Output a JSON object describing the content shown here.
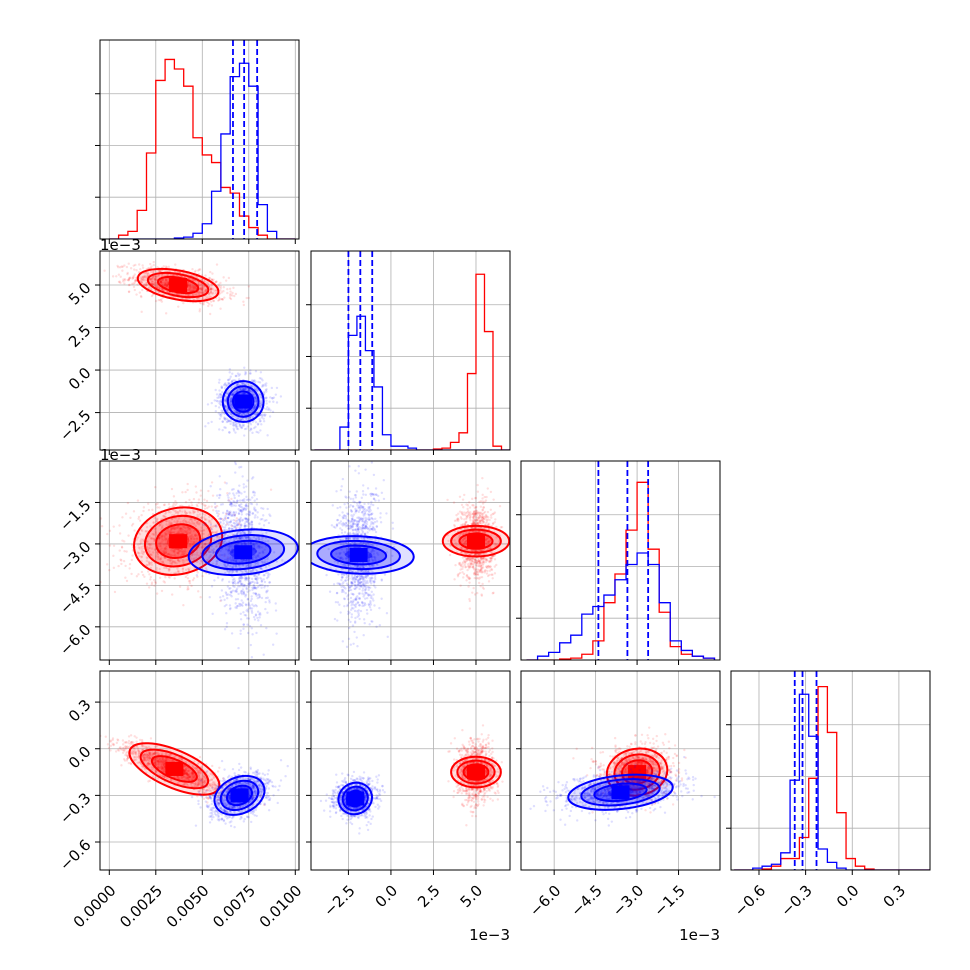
{
  "chart_data": {
    "type": "corner",
    "n_params": 4,
    "grid": true,
    "series": [
      {
        "color": "#ff0000"
      },
      {
        "color": "#0000ff"
      }
    ],
    "params": [
      {
        "range": [
          -0.0005,
          0.0102
        ],
        "ticks": [
          0.0,
          0.0025,
          0.005,
          0.0075,
          0.01
        ],
        "tick_labels": [
          "0.0000",
          "0.0025",
          "0.0050",
          "0.0075",
          "0.0100"
        ],
        "offset_text": ""
      },
      {
        "range": [
          -4.7,
          7.0
        ],
        "ticks": [
          -2.5,
          0.0,
          2.5,
          5.0
        ],
        "tick_labels": [
          "−2.5",
          "0.0",
          "2.5",
          "5.0"
        ],
        "offset_text": "1e−3"
      },
      {
        "range": [
          -7.2,
          0.0
        ],
        "ticks": [
          -6.0,
          -4.5,
          -3.0,
          -1.5
        ],
        "tick_labels": [
          "−6.0",
          "−4.5",
          "−3.0",
          "−1.5"
        ],
        "offset_text": "1e−3"
      },
      {
        "range": [
          -0.78,
          0.5
        ],
        "ticks": [
          -0.6,
          -0.3,
          0.0,
          0.3
        ],
        "tick_labels": [
          "−0.6",
          "−0.3",
          "0.0",
          "0.3"
        ],
        "offset_text": ""
      }
    ],
    "blob_centers": {
      "red": [
        0.0035,
        5.0,
        -2.9,
        -0.14
      ],
      "blue": [
        0.0072,
        -1.9,
        -3.2,
        -0.33
      ]
    },
    "histograms": [
      {
        "bin_edges": [
          0.0,
          0.0005,
          0.001,
          0.0015,
          0.002,
          0.0025,
          0.003,
          0.0035,
          0.004,
          0.0045,
          0.005,
          0.0055,
          0.006,
          0.0065,
          0.007,
          0.0075,
          0.008,
          0.0085,
          0.009,
          0.0095,
          0.01
        ],
        "red": [
          0.0,
          0.02,
          0.04,
          0.15,
          0.45,
          0.83,
          0.94,
          0.89,
          0.8,
          0.53,
          0.44,
          0.4,
          0.27,
          0.24,
          0.12,
          0.06,
          0.02,
          0.0,
          0.0,
          0.0
        ],
        "blue": [
          0.0,
          0.0,
          0.0,
          0.0,
          0.0,
          0.0,
          0.0,
          0.005,
          0.01,
          0.03,
          0.08,
          0.25,
          0.55,
          0.85,
          0.92,
          0.8,
          0.18,
          0.04,
          0.0,
          0.0
        ],
        "quantiles_blue": [
          0.00665,
          0.00725,
          0.00795
        ]
      },
      {
        "bin_edges": [
          -4.5,
          -4.0,
          -3.5,
          -3.0,
          -2.5,
          -2.0,
          -1.5,
          -1.0,
          -0.5,
          0.0,
          0.5,
          1.0,
          1.5,
          2.0,
          2.5,
          3.0,
          3.5,
          4.0,
          4.5,
          5.0,
          5.5,
          6.0,
          6.5,
          7.0
        ],
        "red": [
          0.0,
          0.0,
          0.0,
          0.0,
          0.0,
          0.0,
          0.0,
          0.0,
          0.0,
          0.0,
          0.0,
          0.0,
          0.0,
          0.0,
          0.005,
          0.01,
          0.04,
          0.09,
          0.4,
          0.92,
          0.62,
          0.02,
          0.0
        ],
        "blue": [
          0.0,
          0.0,
          0.0,
          0.12,
          0.6,
          0.7,
          0.52,
          0.33,
          0.08,
          0.02,
          0.02,
          0.01,
          0.0,
          0.0,
          0.0,
          0.0,
          0.0,
          0.0,
          0.0,
          0.0,
          0.0,
          0.0,
          0.0
        ],
        "quantiles_blue": [
          -2.5,
          -1.8,
          -1.1
        ]
      },
      {
        "bin_edges": [
          -7.0,
          -6.6,
          -6.2,
          -5.8,
          -5.4,
          -5.0,
          -4.6,
          -4.2,
          -3.8,
          -3.4,
          -3.0,
          -2.6,
          -2.2,
          -1.8,
          -1.4,
          -1.0,
          -0.6,
          -0.2
        ],
        "red": [
          0.0,
          0.0,
          0.0,
          0.005,
          0.01,
          0.03,
          0.1,
          0.3,
          0.45,
          0.68,
          0.93,
          0.58,
          0.25,
          0.07,
          0.03,
          0.02,
          0.01
        ],
        "blue": [
          0.0,
          0.02,
          0.04,
          0.09,
          0.13,
          0.24,
          0.28,
          0.34,
          0.42,
          0.5,
          0.56,
          0.5,
          0.3,
          0.1,
          0.05,
          0.02,
          0.01
        ],
        "quantiles_blue": [
          -4.4,
          -3.35,
          -2.6
        ]
      },
      {
        "bin_edges": [
          -0.76,
          -0.7,
          -0.64,
          -0.58,
          -0.52,
          -0.46,
          -0.4,
          -0.34,
          -0.28,
          -0.22,
          -0.16,
          -0.1,
          -0.04,
          0.02,
          0.08,
          0.14,
          0.2,
          0.26,
          0.32,
          0.38,
          0.44,
          0.5
        ],
        "red": [
          0.0,
          0.0,
          0.0,
          0.005,
          0.02,
          0.06,
          0.06,
          0.17,
          0.48,
          0.96,
          0.72,
          0.3,
          0.06,
          0.02,
          0.005,
          0.0,
          0.0,
          0.0,
          0.0,
          0.0,
          0.0
        ],
        "blue": [
          0.0,
          0.0,
          0.01,
          0.02,
          0.03,
          0.09,
          0.47,
          0.92,
          0.7,
          0.11,
          0.04,
          0.01,
          0.0,
          0.0,
          0.0,
          0.0,
          0.0,
          0.0,
          0.0,
          0.0,
          0.0
        ],
        "quantiles_blue": [
          -0.37,
          -0.32,
          -0.23
        ]
      }
    ]
  }
}
